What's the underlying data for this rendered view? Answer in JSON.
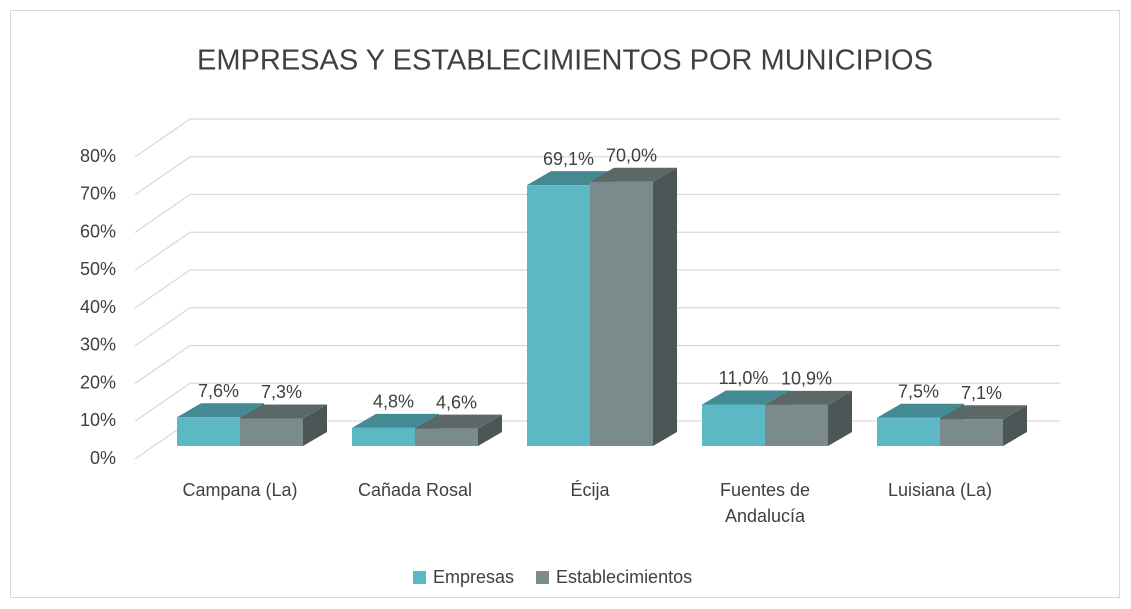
{
  "chart_data": {
    "type": "bar3d",
    "title": "EMPRESAS Y ESTABLECIMIENTOS POR MUNICIPIOS",
    "categories": [
      "Campana (La)",
      "Cañada Rosal",
      "Écija",
      "Fuentes de Andalucía",
      "Luisiana (La)"
    ],
    "series": [
      {
        "name": "Empresas",
        "color": "#5bb8c4",
        "values": [
          7.6,
          4.8,
          69.1,
          11.0,
          7.5
        ],
        "value_labels": [
          "7,6%",
          "4,8%",
          "69,1%",
          "11,0%",
          "7,5%"
        ]
      },
      {
        "name": "Establecimientos",
        "color": "#7b8b8b",
        "values": [
          7.3,
          4.6,
          70.0,
          10.9,
          7.1
        ],
        "value_labels": [
          "7,3%",
          "4,6%",
          "70,0%",
          "10,9%",
          "7,1%"
        ]
      }
    ],
    "ylim": [
      0,
      80
    ],
    "yticks": [
      {
        "value": 0,
        "label": "0%"
      },
      {
        "value": 10,
        "label": "10%"
      },
      {
        "value": 20,
        "label": "20%"
      },
      {
        "value": 30,
        "label": "30%"
      },
      {
        "value": 40,
        "label": "40%"
      },
      {
        "value": 50,
        "label": "50%"
      },
      {
        "value": 60,
        "label": "60%"
      },
      {
        "value": 70,
        "label": "70%"
      },
      {
        "value": 80,
        "label": "80%"
      }
    ],
    "grid": true,
    "legend": "bottom"
  }
}
